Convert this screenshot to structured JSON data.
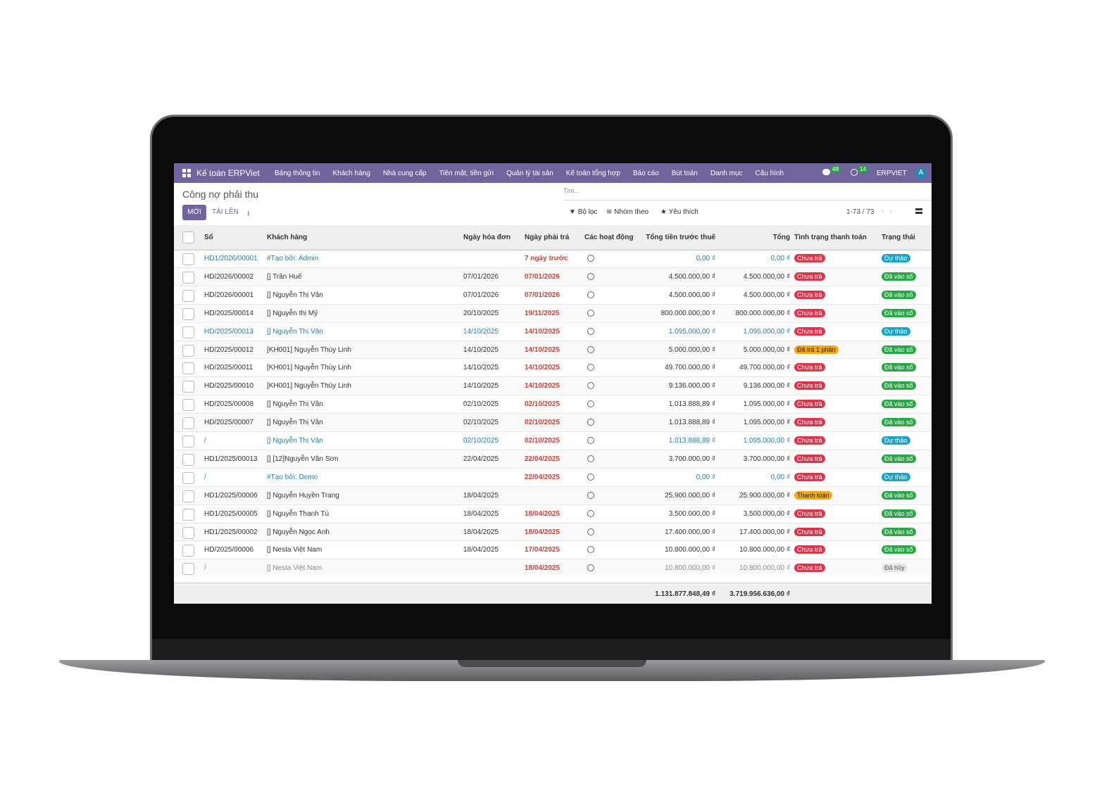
{
  "nav": {
    "app": "Kế toán ERPViet",
    "menu": [
      "Bảng thông tin",
      "Khách hàng",
      "Nhà cung cấp",
      "Tiền mặt, tiền gửi",
      "Quản lý tài sản",
      "Kế toán tổng hợp",
      "Báo cáo",
      "Bút toán",
      "Danh mục",
      "Cấu hình"
    ],
    "messages": "48",
    "activities": "14",
    "company": "ERPVIET",
    "avatar": "A"
  },
  "page": {
    "title": "Công nợ phải thu",
    "new": "MỚI",
    "upload": "TẢI LÊN",
    "search": "Tìm...",
    "filter": "Bộ lọc",
    "group": "Nhóm theo",
    "favorite": "Yêu thích",
    "pager": "1-73 / 73"
  },
  "table": {
    "headers": [
      "Số",
      "Khách hàng",
      "Ngày hóa đơn",
      "Ngày phải trả",
      "Các hoạt động",
      "Tổng tiền trước thuế",
      "Tổng",
      "Tình trạng thanh toán",
      "Trạng thái"
    ],
    "rows": [
      [
        "HD1/2026/00001",
        "#Tạo bởi: Admin",
        null,
        "7 ngày trước",
        "0,00 ₫",
        "0,00 ₫",
        "Chưa trả",
        "Dự thảo"
      ],
      [
        "HD/2026/00002",
        "[] Trần Huế",
        "07/01/2026",
        "07/01/2026",
        "4.500.000,00 ₫",
        "4.500.000,00 ₫",
        "Chưa trả",
        "Đã vào sổ"
      ],
      [
        "HD/2026/00001",
        "[] Nguyễn Thị Vân",
        "07/01/2026",
        "07/01/2026",
        "4.500.000,00 ₫",
        "4.500.000,00 ₫",
        "Chưa trả",
        "Đã vào sổ"
      ],
      [
        "HD/2025/00014",
        "[] Nguyễn thị Mỹ",
        "20/10/2025",
        "19/11/2025",
        "800.000.000,00 ₫",
        "800.000.000,00 ₫",
        "Chưa trả",
        "Đã vào sổ"
      ],
      [
        "HD/2025/00013",
        "[] Nguyễn Thị Vân",
        "14/10/2025",
        "14/10/2025",
        "1.095.000,00 ₫",
        "1.095.000,00 ₫",
        "Chưa trả",
        "Dự thảo"
      ],
      [
        "HD/2025/00012",
        "[KH001] Nguyễn Thùy Linh",
        "14/10/2025",
        "14/10/2025",
        "5.000.000,00 ₫",
        "5.000.000,00 ₫",
        "Đã trả 1 phần",
        "Đã vào sổ"
      ],
      [
        "HD/2025/00011",
        "[KH001] Nguyễn Thùy Linh",
        "14/10/2025",
        "14/10/2025",
        "49.700.000,00 ₫",
        "49.700.000,00 ₫",
        "Chưa trả",
        "Đã vào sổ"
      ],
      [
        "HD/2025/00010",
        "[KH001] Nguyễn Thùy Linh",
        "14/10/2025",
        "14/10/2025",
        "9.136.000,00 ₫",
        "9.136.000,00 ₫",
        "Chưa trả",
        "Đã vào sổ"
      ],
      [
        "HD/2025/00008",
        "[] Nguyễn Thị Vân",
        "02/10/2025",
        "02/10/2025",
        "1.013.888,89 ₫",
        "1.095.000,00 ₫",
        "Chưa trả",
        "Đã vào sổ"
      ],
      [
        "HD/2025/00007",
        "[] Nguyễn Thị Vân",
        "02/10/2025",
        "02/10/2025",
        "1.013.888,89 ₫",
        "1.095.000,00 ₫",
        "Chưa trả",
        "Đã vào sổ"
      ],
      [
        "/",
        "[] Nguyễn Thị Vân",
        "02/10/2025",
        "02/10/2025",
        "1.013.888,89 ₫",
        "1.095.000,00 ₫",
        "Chưa trả",
        "Dự thảo"
      ],
      [
        "HD1/2025/00013",
        "[] [12]Nguyễn Văn Sơn",
        "22/04/2025",
        "22/04/2025",
        "3.700.000,00 ₫",
        "3.700.000,00 ₫",
        "Chưa trả",
        "Đã vào sổ"
      ],
      [
        "/",
        "#Tạo bởi: Demo",
        null,
        "22/04/2025",
        "0,00 ₫",
        "0,00 ₫",
        "Chưa trả",
        "Dự thảo"
      ],
      [
        "HD1/2025/00006",
        "[] Nguyễn Huyền Trang",
        "18/04/2025",
        null,
        "25.900.000,00 ₫",
        "25.900.000,00 ₫",
        "Thanh toán",
        "Đã vào sổ"
      ],
      [
        "HD1/2025/00005",
        "[] Nguyễn Thanh Tú",
        "18/04/2025",
        "18/04/2025",
        "3.500.000,00 ₫",
        "3.500.000,00 ₫",
        "Chưa trả",
        "Đã vào sổ"
      ],
      [
        "HD1/2025/00002",
        "[] Nguyễn Ngọc Anh",
        "18/04/2025",
        "18/04/2025",
        "17.400.000,00 ₫",
        "17.400.000,00 ₫",
        "Chưa trả",
        "Đã vào sổ"
      ],
      [
        "HD/2025/00006",
        "[] Nesta Việt Nam",
        "18/04/2025",
        "17/04/2025",
        "10.800.000,00 ₫",
        "10.800.000,00 ₫",
        "Chưa trả",
        "Đã vào sổ"
      ],
      [
        "/",
        "[] Nesta Việt Nam",
        null,
        "18/04/2025",
        "10.800.000,00 ₫",
        "10.800.000,00 ₫",
        "Chưa trả",
        "Đã hủy"
      ]
    ],
    "totals": {
      "untaxed": "1.131.877.848,49 ₫",
      "total": "3.719.956.636,00 ₫"
    }
  }
}
